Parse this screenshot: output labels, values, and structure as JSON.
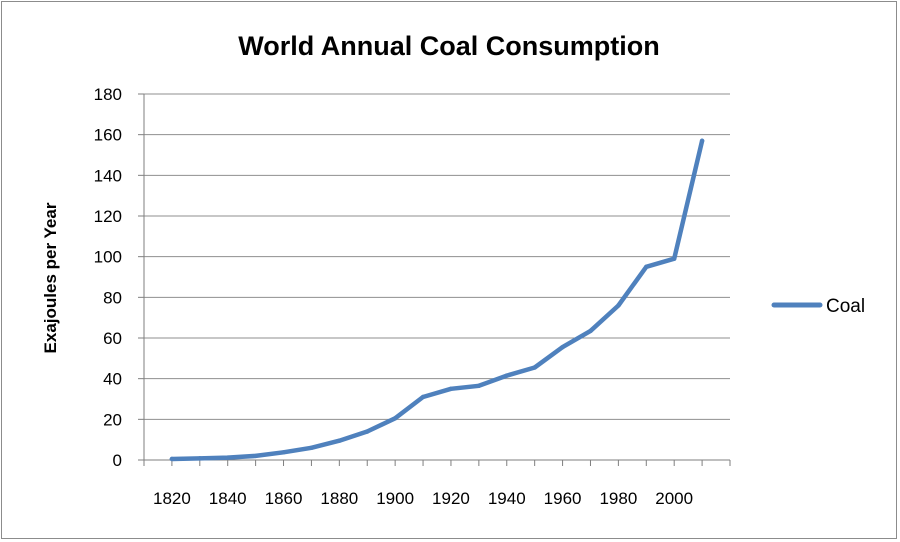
{
  "chart_data": {
    "type": "line",
    "title": "World Annual Coal Consumption",
    "xlabel": "",
    "ylabel": "Exajoules per Year",
    "x": [
      1820,
      1830,
      1840,
      1850,
      1860,
      1870,
      1880,
      1890,
      1900,
      1910,
      1920,
      1930,
      1940,
      1950,
      1960,
      1970,
      1980,
      1990,
      2000,
      2010
    ],
    "xticks": [
      "1820",
      "1840",
      "1860",
      "1880",
      "1900",
      "1920",
      "1940",
      "1960",
      "1980",
      "2000"
    ],
    "yticks": [
      "0",
      "20",
      "40",
      "60",
      "80",
      "100",
      "120",
      "140",
      "160",
      "180"
    ],
    "ylim": [
      0,
      180
    ],
    "grid": true,
    "legend_position": "right",
    "series": [
      {
        "name": "Coal",
        "color": "#4f81bd",
        "values": [
          0.5,
          0.8,
          1.2,
          2,
          3.8,
          6,
          9.5,
          14,
          20.5,
          31,
          35,
          36.5,
          41.5,
          45.5,
          55.5,
          63.5,
          76,
          95,
          99,
          157
        ]
      }
    ]
  }
}
